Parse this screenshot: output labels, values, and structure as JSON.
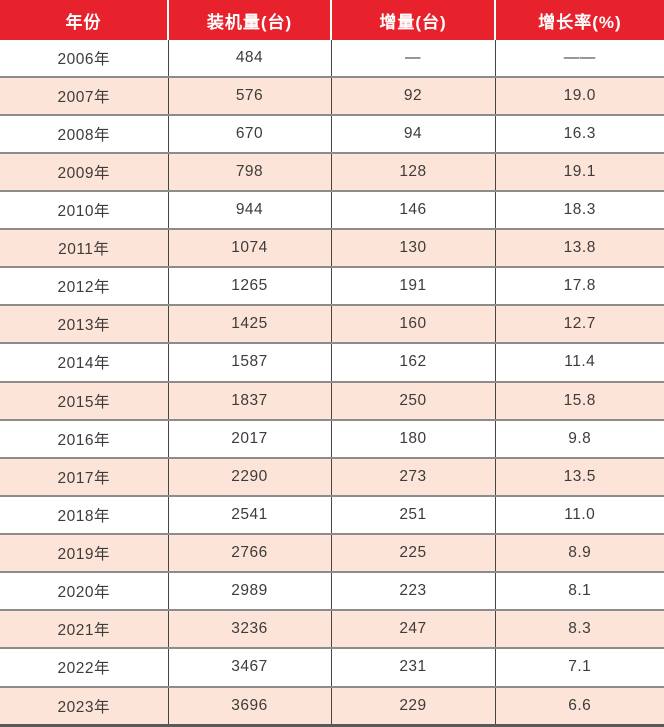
{
  "table": {
    "columns": [
      "年份",
      "装机量(台)",
      "增量(台)",
      "增长率(%)"
    ],
    "rows": [
      [
        "2006年",
        "484",
        "—",
        "——"
      ],
      [
        "2007年",
        "576",
        "92",
        "19.0"
      ],
      [
        "2008年",
        "670",
        "94",
        "16.3"
      ],
      [
        "2009年",
        "798",
        "128",
        "19.1"
      ],
      [
        "2010年",
        "944",
        "146",
        "18.3"
      ],
      [
        "2011年",
        "1074",
        "130",
        "13.8"
      ],
      [
        "2012年",
        "1265",
        "191",
        "17.8"
      ],
      [
        "2013年",
        "1425",
        "160",
        "12.7"
      ],
      [
        "2014年",
        "1587",
        "162",
        "11.4"
      ],
      [
        "2015年",
        "1837",
        "250",
        "15.8"
      ],
      [
        "2016年",
        "2017",
        "180",
        "9.8"
      ],
      [
        "2017年",
        "2290",
        "273",
        "13.5"
      ],
      [
        "2018年",
        "2541",
        "251",
        "11.0"
      ],
      [
        "2019年",
        "2766",
        "225",
        "8.9"
      ],
      [
        "2020年",
        "2989",
        "223",
        "8.1"
      ],
      [
        "2021年",
        "3236",
        "247",
        "8.3"
      ],
      [
        "2022年",
        "3467",
        "231",
        "7.1"
      ],
      [
        "2023年",
        "3696",
        "229",
        "6.6"
      ]
    ]
  },
  "colors": {
    "header_bg": "#e8222c",
    "header_text": "#ffffff",
    "row_bg": "#ffffff",
    "row_alt_bg": "#fce5d8",
    "body_text": "#3f3b3a",
    "h_border": "#8c8c8c",
    "v_border": "#454545",
    "bottom_border": "#5a5a5a"
  },
  "chart_data": {
    "type": "table",
    "title": "",
    "columns": [
      "年份",
      "装机量(台)",
      "增量(台)",
      "增长率(%)"
    ],
    "rows": [
      [
        "2006年",
        484,
        null,
        null
      ],
      [
        "2007年",
        576,
        92,
        19.0
      ],
      [
        "2008年",
        670,
        94,
        16.3
      ],
      [
        "2009年",
        798,
        128,
        19.1
      ],
      [
        "2010年",
        944,
        146,
        18.3
      ],
      [
        "2011年",
        1074,
        130,
        13.8
      ],
      [
        "2012年",
        1265,
        191,
        17.8
      ],
      [
        "2013年",
        1425,
        160,
        12.7
      ],
      [
        "2014年",
        1587,
        162,
        11.4
      ],
      [
        "2015年",
        1837,
        250,
        15.8
      ],
      [
        "2016年",
        2017,
        180,
        9.8
      ],
      [
        "2017年",
        2290,
        273,
        13.5
      ],
      [
        "2018年",
        2541,
        251,
        11.0
      ],
      [
        "2019年",
        2766,
        225,
        8.9
      ],
      [
        "2020年",
        2989,
        223,
        8.1
      ],
      [
        "2021年",
        3236,
        247,
        8.3
      ],
      [
        "2022年",
        3467,
        231,
        7.1
      ],
      [
        "2023年",
        3696,
        229,
        6.6
      ]
    ],
    "notes": "2006 row has no increment/growth values (shown as dashes); rows alternate white and peach backgrounds; header is red with white text"
  }
}
